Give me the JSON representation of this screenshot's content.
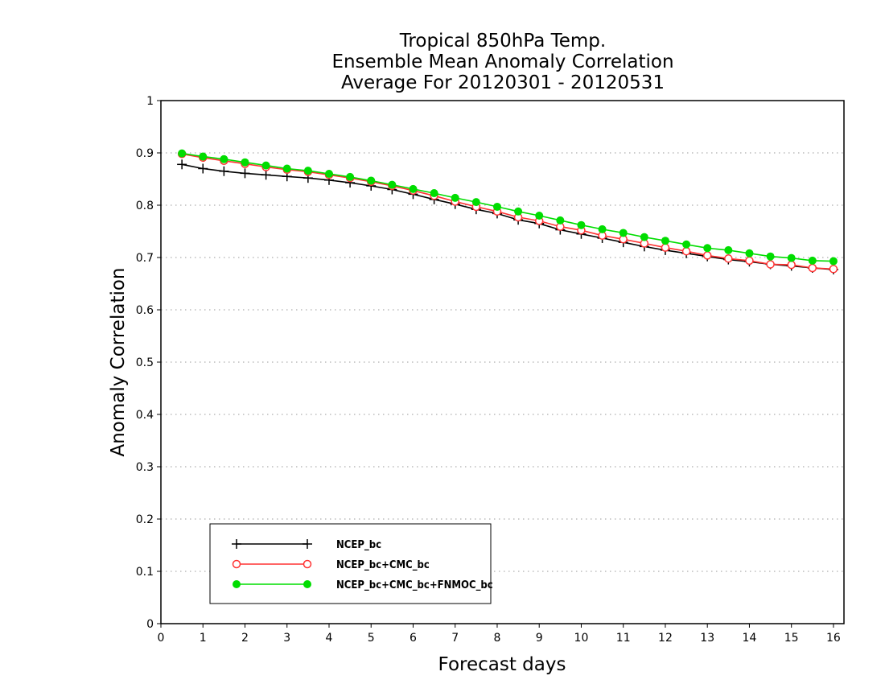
{
  "chart_data": {
    "type": "line",
    "title_lines": [
      "Tropical 850hPa Temp.",
      "Ensemble Mean Anomaly Correlation",
      "Average For 20120301 - 20120531"
    ],
    "xlabel": "Forecast days",
    "ylabel": "Anomaly Correlation",
    "xlim": [
      0,
      16.25
    ],
    "ylim": [
      0,
      1
    ],
    "x_ticks": [
      0,
      1,
      2,
      3,
      4,
      5,
      6,
      7,
      8,
      9,
      10,
      11,
      12,
      13,
      14,
      15,
      16
    ],
    "y_ticks": [
      0,
      0.1,
      0.2,
      0.3,
      0.4,
      0.5,
      0.6,
      0.7,
      0.8,
      0.9,
      1
    ],
    "y_tick_labels": [
      "0",
      "0.1",
      "0.2",
      "0.3",
      "0.4",
      "0.5",
      "0.6",
      "0.7",
      "0.8",
      "0.9",
      "1"
    ],
    "grid": "horizontal dotted",
    "legend_position": "bottom-left",
    "x": [
      0.5,
      1,
      1.5,
      2,
      2.5,
      3,
      3.5,
      4,
      4.5,
      5,
      5.5,
      6,
      6.5,
      7,
      7.5,
      8,
      8.5,
      9,
      9.5,
      10,
      10.5,
      11,
      11.5,
      12,
      12.5,
      13,
      13.5,
      14,
      14.5,
      15,
      15.5,
      16
    ],
    "series": [
      {
        "name": "NCEP_bc",
        "color": "#000000",
        "marker": "plus",
        "values": [
          0.878,
          0.87,
          0.865,
          0.861,
          0.858,
          0.855,
          0.852,
          0.848,
          0.843,
          0.837,
          0.83,
          0.821,
          0.811,
          0.802,
          0.792,
          0.784,
          0.772,
          0.765,
          0.753,
          0.745,
          0.737,
          0.729,
          0.721,
          0.714,
          0.708,
          0.702,
          0.696,
          0.692,
          0.687,
          0.684,
          0.68,
          0.677
        ]
      },
      {
        "name": "NCEP_bc+CMC_bc",
        "color": "#ff3333",
        "marker": "open-circle",
        "values": [
          0.898,
          0.891,
          0.885,
          0.879,
          0.873,
          0.868,
          0.864,
          0.858,
          0.852,
          0.845,
          0.837,
          0.828,
          0.818,
          0.807,
          0.797,
          0.788,
          0.777,
          0.77,
          0.759,
          0.752,
          0.742,
          0.735,
          0.727,
          0.719,
          0.712,
          0.704,
          0.698,
          0.694,
          0.687,
          0.686,
          0.68,
          0.678
        ]
      },
      {
        "name": "NCEP_bc+CMC_bc+FNMOC_bc",
        "color": "#00dd00",
        "marker": "filled-circle",
        "values": [
          0.899,
          0.893,
          0.888,
          0.882,
          0.876,
          0.87,
          0.866,
          0.86,
          0.854,
          0.847,
          0.839,
          0.831,
          0.823,
          0.814,
          0.806,
          0.797,
          0.788,
          0.78,
          0.771,
          0.762,
          0.754,
          0.747,
          0.739,
          0.732,
          0.725,
          0.718,
          0.714,
          0.708,
          0.702,
          0.699,
          0.694,
          0.693
        ]
      }
    ]
  }
}
